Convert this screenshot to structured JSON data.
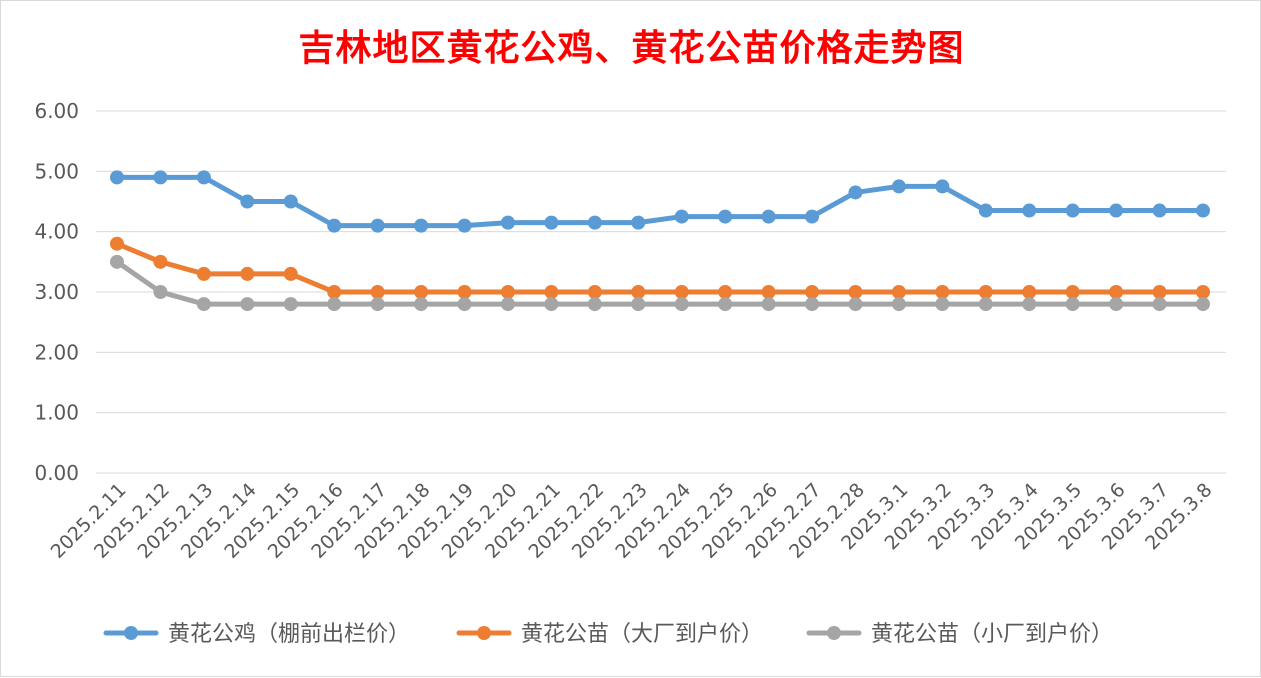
{
  "chart_data": {
    "type": "line",
    "title": "吉林地区黄花公鸡、黄花公苗价格走势图",
    "xlabel": "",
    "ylabel": "",
    "ylim": [
      0,
      6
    ],
    "yticks": [
      "0.00",
      "1.00",
      "2.00",
      "3.00",
      "4.00",
      "5.00",
      "6.00"
    ],
    "grid": true,
    "legend_position": "bottom",
    "categories": [
      "2025.2.11",
      "2025.2.12",
      "2025.2.13",
      "2025.2.14",
      "2025.2.15",
      "2025.2.16",
      "2025.2.17",
      "2025.2.18",
      "2025.2.19",
      "2025.2.20",
      "2025.2.21",
      "2025.2.22",
      "2025.2.23",
      "2025.2.24",
      "2025.2.25",
      "2025.2.26",
      "2025.2.27",
      "2025.2.28",
      "2025.3.1",
      "2025.3.2",
      "2025.3.3",
      "2025.3.4",
      "2025.3.5",
      "2025.3.6",
      "2025.3.7",
      "2025.3.8"
    ],
    "series": [
      {
        "name": "黄花公鸡（棚前出栏价）",
        "color": "#5b9bd5",
        "values": [
          4.9,
          4.9,
          4.9,
          4.5,
          4.5,
          4.1,
          4.1,
          4.1,
          4.1,
          4.15,
          4.15,
          4.15,
          4.15,
          4.25,
          4.25,
          4.25,
          4.25,
          4.65,
          4.75,
          4.75,
          4.35,
          4.35,
          4.35,
          4.35,
          4.35,
          4.35
        ]
      },
      {
        "name": "黄花公苗（大厂到户价）",
        "color": "#ed7d31",
        "values": [
          3.8,
          3.5,
          3.3,
          3.3,
          3.3,
          3.0,
          3.0,
          3.0,
          3.0,
          3.0,
          3.0,
          3.0,
          3.0,
          3.0,
          3.0,
          3.0,
          3.0,
          3.0,
          3.0,
          3.0,
          3.0,
          3.0,
          3.0,
          3.0,
          3.0,
          3.0
        ]
      },
      {
        "name": "黄花公苗（小厂到户价）",
        "color": "#a5a5a5",
        "values": [
          3.5,
          3.0,
          2.8,
          2.8,
          2.8,
          2.8,
          2.8,
          2.8,
          2.8,
          2.8,
          2.8,
          2.8,
          2.8,
          2.8,
          2.8,
          2.8,
          2.8,
          2.8,
          2.8,
          2.8,
          2.8,
          2.8,
          2.8,
          2.8,
          2.8,
          2.8
        ]
      }
    ]
  }
}
